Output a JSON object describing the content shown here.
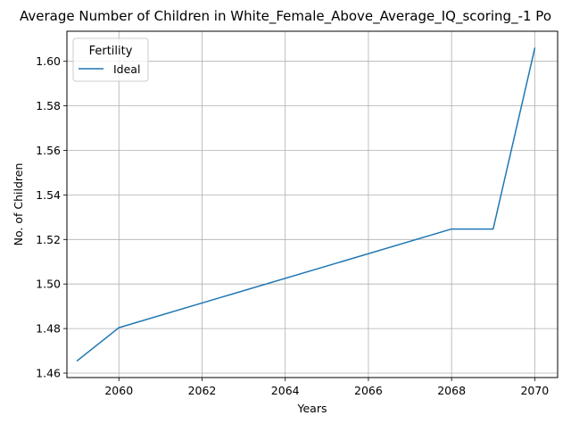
{
  "chart_data": {
    "type": "line",
    "title": "Average Number of Children in White_Female_Above_Average_IQ_scoring_-1 Po",
    "xlabel": "Years",
    "ylabel": "No. of Children",
    "xlim": [
      2058.75,
      2070.55
    ],
    "ylim": [
      1.458,
      1.6135
    ],
    "xticks": [
      2060,
      2062,
      2064,
      2066,
      2068,
      2070
    ],
    "yticks": [
      1.46,
      1.48,
      1.5,
      1.52,
      1.54,
      1.56,
      1.58,
      1.6
    ],
    "ytick_labels": [
      "1.46",
      "1.48",
      "1.50",
      "1.52",
      "1.54",
      "1.56",
      "1.58",
      "1.60"
    ],
    "grid": true,
    "legend": {
      "title": "Fertility",
      "placement": "upper-left"
    },
    "series": [
      {
        "name": "Ideal",
        "color": "#1f77b4",
        "x": [
          2059,
          2060,
          2068,
          2069,
          2070
        ],
        "y": [
          1.4656,
          1.4804,
          1.5247,
          1.5247,
          1.6058
        ]
      }
    ]
  }
}
